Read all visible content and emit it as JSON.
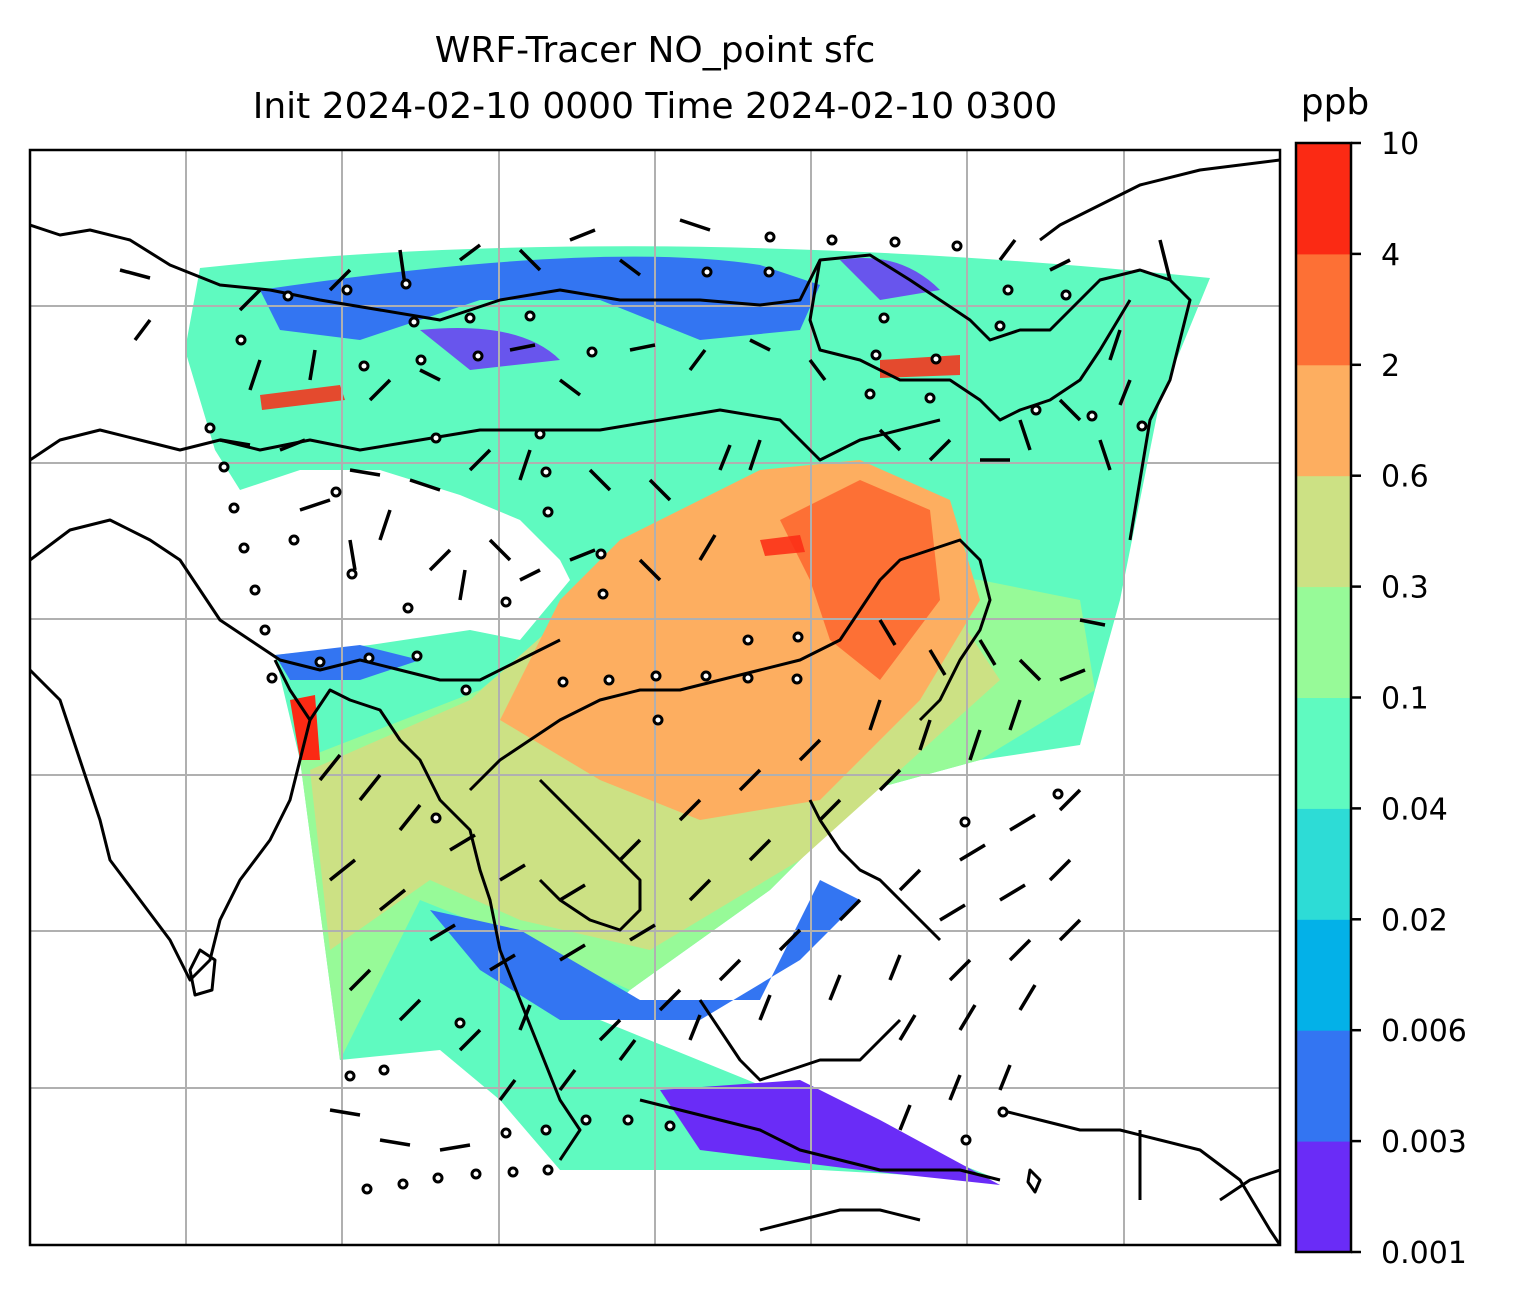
{
  "header": {
    "title_line1": "WRF-Tracer NO_point sfc",
    "title_line2": "Init 2024-02-10 0000 Time 2024-02-10 0300"
  },
  "colorbar": {
    "unit": "ppb",
    "ticks": [
      "0.001",
      "0.003",
      "0.006",
      "0.02",
      "0.04",
      "0.1",
      "0.3",
      "0.6",
      "2",
      "4",
      "10"
    ],
    "colors": [
      "#6a2cf7",
      "#3375f2",
      "#03b1e8",
      "#2ddcd6",
      "#5ffac0",
      "#97fa98",
      "#cce184",
      "#fdae60",
      "#fd7035",
      "#fb2a14"
    ]
  },
  "map_colors": {
    "land_outline": "#000000",
    "grid": "#b0b0b0",
    "background": "#ffffff"
  }
}
